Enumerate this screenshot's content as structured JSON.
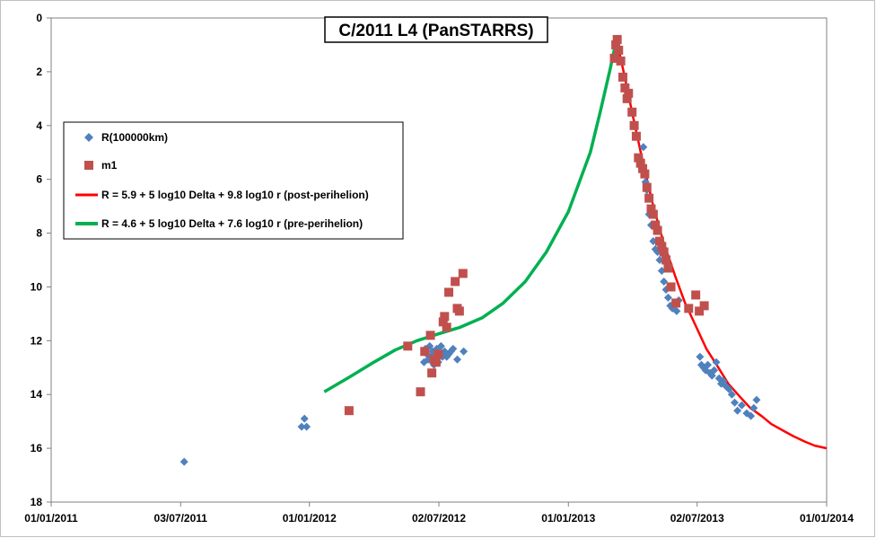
{
  "chart_data": {
    "type": "scatter",
    "title": "C/2011 L4 (PanSTARRS)",
    "xlabel": "",
    "ylabel": "",
    "x_axis": {
      "type": "date",
      "range": [
        "2011-01-01",
        "2014-01-01"
      ],
      "ticks": [
        "2011-01-01",
        "2011-07-03",
        "2012-01-01",
        "2012-07-02",
        "2013-01-01",
        "2013-07-02",
        "2014-01-01"
      ],
      "tick_labels": [
        "01/01/2011",
        "03/07/2011",
        "01/01/2012",
        "02/07/2012",
        "01/01/2013",
        "02/07/2013",
        "01/01/2014"
      ]
    },
    "y_axis": {
      "range": [
        0,
        18
      ],
      "reversed": true,
      "ticks": [
        0,
        2,
        4,
        6,
        8,
        10,
        12,
        14,
        16,
        18
      ],
      "tick_labels": [
        "0",
        "2",
        "4",
        "6",
        "8",
        "10",
        "12",
        "14",
        "16",
        "18"
      ]
    },
    "grid": false,
    "legend_position": "middle-left",
    "colors": {
      "r_series": "#4f81bd",
      "m1_series": "#c0504d",
      "post_fit": "#ff0000",
      "pre_fit": "#00b050"
    },
    "series": [
      {
        "name": "R(100000km)",
        "kind": "scatter",
        "marker": "diamond",
        "color": "#4f81bd",
        "points": [
          [
            "2011-07-08",
            16.5
          ],
          [
            "2011-12-21",
            15.2
          ],
          [
            "2011-12-25",
            14.9
          ],
          [
            "2011-12-28",
            15.2
          ],
          [
            "2012-06-11",
            12.8
          ],
          [
            "2012-06-13",
            12.3
          ],
          [
            "2012-06-15",
            12.5
          ],
          [
            "2012-06-17",
            12.7
          ],
          [
            "2012-06-19",
            12.2
          ],
          [
            "2012-06-21",
            12.6
          ],
          [
            "2012-06-23",
            12.4
          ],
          [
            "2012-06-25",
            12.9
          ],
          [
            "2012-06-27",
            12.6
          ],
          [
            "2012-06-29",
            12.3
          ],
          [
            "2012-07-01",
            12.8
          ],
          [
            "2012-07-03",
            12.5
          ],
          [
            "2012-07-05",
            12.2
          ],
          [
            "2012-07-07",
            12.6
          ],
          [
            "2012-07-10",
            12.4
          ],
          [
            "2012-07-13",
            12.6
          ],
          [
            "2012-07-16",
            12.5
          ],
          [
            "2012-07-19",
            12.4
          ],
          [
            "2012-07-22",
            12.3
          ],
          [
            "2012-07-28",
            12.7
          ],
          [
            "2012-08-06",
            12.4
          ],
          [
            "2013-04-17",
            4.8
          ],
          [
            "2013-04-20",
            6.1
          ],
          [
            "2013-04-22",
            6.4
          ],
          [
            "2013-04-25",
            7.3
          ],
          [
            "2013-04-28",
            7.7
          ],
          [
            "2013-05-01",
            8.3
          ],
          [
            "2013-05-04",
            8.6
          ],
          [
            "2013-05-07",
            8.7
          ],
          [
            "2013-05-10",
            9.0
          ],
          [
            "2013-05-13",
            9.4
          ],
          [
            "2013-05-16",
            9.8
          ],
          [
            "2013-05-19",
            10.1
          ],
          [
            "2013-05-22",
            10.4
          ],
          [
            "2013-05-25",
            10.7
          ],
          [
            "2013-05-28",
            10.8
          ],
          [
            "2013-05-31",
            10.6
          ],
          [
            "2013-06-03",
            10.9
          ],
          [
            "2013-06-06",
            10.5
          ],
          [
            "2013-07-06",
            12.6
          ],
          [
            "2013-07-08",
            12.9
          ],
          [
            "2013-07-11",
            13.0
          ],
          [
            "2013-07-14",
            13.1
          ],
          [
            "2013-07-17",
            12.9
          ],
          [
            "2013-07-20",
            13.2
          ],
          [
            "2013-07-23",
            13.3
          ],
          [
            "2013-07-26",
            13.1
          ],
          [
            "2013-07-29",
            12.8
          ],
          [
            "2013-08-02",
            13.4
          ],
          [
            "2013-08-05",
            13.6
          ],
          [
            "2013-08-08",
            13.5
          ],
          [
            "2013-08-12",
            13.7
          ],
          [
            "2013-08-16",
            13.8
          ],
          [
            "2013-08-20",
            14.0
          ],
          [
            "2013-08-24",
            14.3
          ],
          [
            "2013-08-28",
            14.6
          ],
          [
            "2013-09-03",
            14.4
          ],
          [
            "2013-09-10",
            14.7
          ],
          [
            "2013-09-16",
            14.8
          ],
          [
            "2013-09-20",
            14.5
          ],
          [
            "2013-09-24",
            14.2
          ]
        ]
      },
      {
        "name": "m1",
        "kind": "scatter",
        "marker": "square",
        "color": "#c0504d",
        "points": [
          [
            "2012-02-26",
            14.6
          ],
          [
            "2012-05-19",
            12.2
          ],
          [
            "2012-06-06",
            13.9
          ],
          [
            "2012-06-12",
            12.4
          ],
          [
            "2012-06-20",
            11.8
          ],
          [
            "2012-06-22",
            13.2
          ],
          [
            "2012-06-25",
            12.7
          ],
          [
            "2012-06-28",
            12.8
          ],
          [
            "2012-07-01",
            12.5
          ],
          [
            "2012-07-08",
            11.3
          ],
          [
            "2012-07-10",
            11.1
          ],
          [
            "2012-07-13",
            11.5
          ],
          [
            "2012-07-16",
            10.2
          ],
          [
            "2012-07-25",
            9.8
          ],
          [
            "2012-07-28",
            10.8
          ],
          [
            "2012-07-31",
            10.9
          ],
          [
            "2012-08-05",
            9.5
          ],
          [
            "2013-03-07",
            1.5
          ],
          [
            "2013-03-09",
            1.0
          ],
          [
            "2013-03-11",
            0.8
          ],
          [
            "2013-03-13",
            1.2
          ],
          [
            "2013-03-16",
            1.6
          ],
          [
            "2013-03-19",
            2.2
          ],
          [
            "2013-03-22",
            2.6
          ],
          [
            "2013-03-25",
            3.0
          ],
          [
            "2013-03-27",
            2.8
          ],
          [
            "2013-04-01",
            3.5
          ],
          [
            "2013-04-04",
            4.0
          ],
          [
            "2013-04-07",
            4.4
          ],
          [
            "2013-04-10",
            5.2
          ],
          [
            "2013-04-13",
            5.4
          ],
          [
            "2013-04-16",
            5.6
          ],
          [
            "2013-04-19",
            5.8
          ],
          [
            "2013-04-22",
            6.3
          ],
          [
            "2013-04-25",
            6.7
          ],
          [
            "2013-04-28",
            7.1
          ],
          [
            "2013-05-01",
            7.3
          ],
          [
            "2013-05-04",
            7.7
          ],
          [
            "2013-05-07",
            7.9
          ],
          [
            "2013-05-10",
            8.3
          ],
          [
            "2013-05-13",
            8.5
          ],
          [
            "2013-05-16",
            8.7
          ],
          [
            "2013-05-19",
            9.0
          ],
          [
            "2013-05-22",
            9.3
          ],
          [
            "2013-05-26",
            10.0
          ],
          [
            "2013-06-02",
            10.6
          ],
          [
            "2013-06-20",
            10.8
          ],
          [
            "2013-06-30",
            10.3
          ],
          [
            "2013-07-05",
            10.9
          ],
          [
            "2013-07-12",
            10.7
          ]
        ]
      },
      {
        "name": "R = 5.9 + 5 log10 Delta + 9.8 log10 r (post-perihelion)",
        "kind": "line",
        "color": "#ff0000",
        "points": [
          [
            "2013-03-10",
            0.8
          ],
          [
            "2013-03-20",
            2.0
          ],
          [
            "2013-04-01",
            3.5
          ],
          [
            "2013-04-15",
            5.2
          ],
          [
            "2013-05-01",
            7.0
          ],
          [
            "2013-05-15",
            8.3
          ],
          [
            "2013-06-01",
            9.6
          ],
          [
            "2013-06-15",
            10.6
          ],
          [
            "2013-07-01",
            11.5
          ],
          [
            "2013-07-15",
            12.3
          ],
          [
            "2013-08-01",
            13.0
          ],
          [
            "2013-08-15",
            13.6
          ],
          [
            "2013-09-01",
            14.1
          ],
          [
            "2013-09-15",
            14.5
          ],
          [
            "2013-10-01",
            14.8
          ],
          [
            "2013-10-15",
            15.1
          ],
          [
            "2013-11-01",
            15.35
          ],
          [
            "2013-11-15",
            15.55
          ],
          [
            "2013-12-01",
            15.75
          ],
          [
            "2013-12-15",
            15.9
          ],
          [
            "2014-01-01",
            16.0
          ]
        ]
      },
      {
        "name": "R = 4.6 + 5 log10 Delta + 7.6 log10 r (pre-perihelion)",
        "kind": "line",
        "color": "#00b050",
        "points": [
          [
            "2012-01-22",
            13.9
          ],
          [
            "2012-03-01",
            13.3
          ],
          [
            "2012-04-01",
            12.8
          ],
          [
            "2012-05-01",
            12.35
          ],
          [
            "2012-06-01",
            12.0
          ],
          [
            "2012-07-01",
            11.75
          ],
          [
            "2012-08-01",
            11.5
          ],
          [
            "2012-09-01",
            11.15
          ],
          [
            "2012-10-01",
            10.6
          ],
          [
            "2012-11-01",
            9.8
          ],
          [
            "2012-12-01",
            8.7
          ],
          [
            "2013-01-01",
            7.2
          ],
          [
            "2013-02-01",
            5.0
          ],
          [
            "2013-02-15",
            3.5
          ],
          [
            "2013-03-01",
            1.9
          ],
          [
            "2013-03-10",
            0.8
          ]
        ]
      }
    ]
  }
}
